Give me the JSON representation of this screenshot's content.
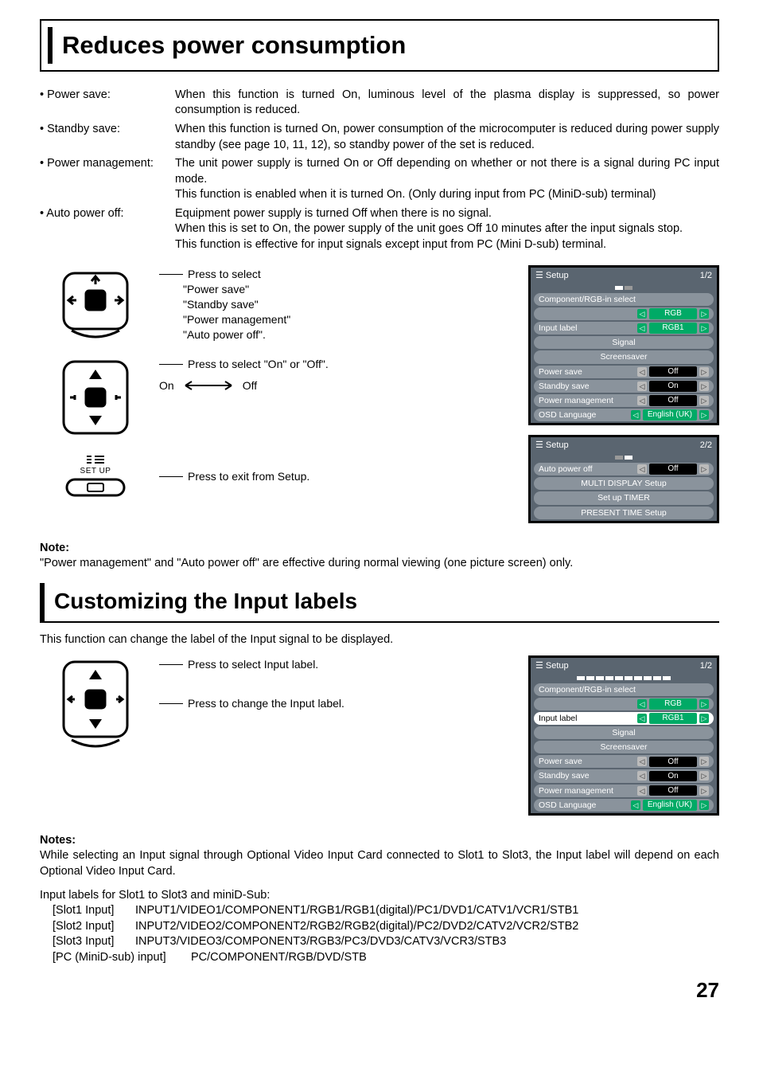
{
  "page_number": "27",
  "section1": {
    "title": "Reduces power consumption",
    "defs": [
      {
        "label": "• Power save:",
        "text": "When this function is turned On, luminous level of the plasma display is suppressed, so power consumption is reduced."
      },
      {
        "label": "• Standby save:",
        "text": "When this function is turned On, power consumption of the microcomputer is reduced during power supply standby (see page 10, 11, 12), so standby power of the set is reduced."
      },
      {
        "label": "• Power management:",
        "text": "The unit power supply is turned On or Off depending on whether or not there is a signal during PC input mode.\nThis function is enabled when it is turned On. (Only during input from PC (MiniD-sub) terminal)"
      },
      {
        "label": "• Auto power off:",
        "text": "Equipment power supply is turned Off when there is no signal.\nWhen this is set to On, the power supply of the unit goes Off 10 minutes after the input signals stop.\nThis function is effective for input signals except input from PC (Mini D-sub) terminal."
      }
    ],
    "instr": {
      "press_select": "Press to select",
      "items": [
        "\"Power save\"",
        "\"Standby save\"",
        "\"Power management\"",
        "\"Auto power off\"."
      ],
      "press_onoff": "Press to select \"On\" or \"Off\".",
      "on": "On",
      "off": "Off",
      "setup_label": "SET UP",
      "press_exit": "Press to exit from Setup."
    },
    "note_head": "Note:",
    "note_text": "\"Power management\" and \"Auto power off\" are effective during normal viewing (one picture screen) only."
  },
  "osd1": {
    "title": "Setup",
    "page": "1/2",
    "rows": [
      {
        "type": "label",
        "text": "Component/RGB-in  select"
      },
      {
        "type": "val",
        "label": "",
        "val": "RGB",
        "hl": true
      },
      {
        "type": "val",
        "label": "Input label",
        "val": "RGB1",
        "hl": true
      },
      {
        "type": "full",
        "text": "Signal"
      },
      {
        "type": "full",
        "text": "Screensaver"
      },
      {
        "type": "val",
        "label": "Power save",
        "val": "Off"
      },
      {
        "type": "val",
        "label": "Standby save",
        "val": "On"
      },
      {
        "type": "val",
        "label": "Power management",
        "val": "Off"
      },
      {
        "type": "val",
        "label": "OSD  Language",
        "val": "English (UK)",
        "hl": true
      }
    ]
  },
  "osd2": {
    "title": "Setup",
    "page": "2/2",
    "rows": [
      {
        "type": "val",
        "label": "Auto power off",
        "val": "Off"
      },
      {
        "type": "full",
        "text": "MULTI DISPLAY Setup"
      },
      {
        "type": "full",
        "text": "Set up TIMER"
      },
      {
        "type": "full",
        "text": "PRESENT  TIME  Setup"
      }
    ]
  },
  "section2": {
    "title": "Customizing the Input labels",
    "intro": "This function can change the label of the Input signal to be displayed.",
    "cap1": "Press to select Input label.",
    "cap2": "Press to change the Input label.",
    "notes_head": "Notes:",
    "notes_text": "While selecting an Input signal through Optional Video Input Card connected to Slot1 to Slot3, the Input label will depend on each Optional Video Input Card.",
    "labels_intro": "Input labels for Slot1 to Slot3 and miniD-Sub:",
    "labels": [
      {
        "k": "[Slot1 Input]",
        "v": "INPUT1/VIDEO1/COMPONENT1/RGB1/RGB1(digital)/PC1/DVD1/CATV1/VCR1/STB1"
      },
      {
        "k": "[Slot2 Input]",
        "v": "INPUT2/VIDEO2/COMPONENT2/RGB2/RGB2(digital)/PC2/DVD2/CATV2/VCR2/STB2"
      },
      {
        "k": "[Slot3 Input]",
        "v": "INPUT3/VIDEO3/COMPONENT3/RGB3/PC3/DVD3/CATV3/VCR3/STB3"
      }
    ],
    "label_last_k": "[PC (MiniD-sub) input]",
    "label_last_v": "PC/COMPONENT/RGB/DVD/STB"
  },
  "osd3": {
    "title": "Setup",
    "page": "1/2",
    "rows": [
      {
        "type": "label",
        "text": "Component/RGB-in  select"
      },
      {
        "type": "val",
        "label": "",
        "val": "RGB",
        "hl": true
      },
      {
        "type": "val",
        "label": "Input label",
        "val": "RGB1",
        "hlrow": true
      },
      {
        "type": "full",
        "text": "Signal"
      },
      {
        "type": "full",
        "text": "Screensaver"
      },
      {
        "type": "val",
        "label": "Power save",
        "val": "Off"
      },
      {
        "type": "val",
        "label": "Standby save",
        "val": "On"
      },
      {
        "type": "val",
        "label": "Power management",
        "val": "Off"
      },
      {
        "type": "val",
        "label": "OSD  Language",
        "val": "English (UK)",
        "hl": true
      }
    ]
  },
  "colors": {
    "osd_bg": "#5a6570",
    "osd_pill": "#8a939c",
    "osd_val_bg": "#000000",
    "osd_hl": "#0a6"
  }
}
